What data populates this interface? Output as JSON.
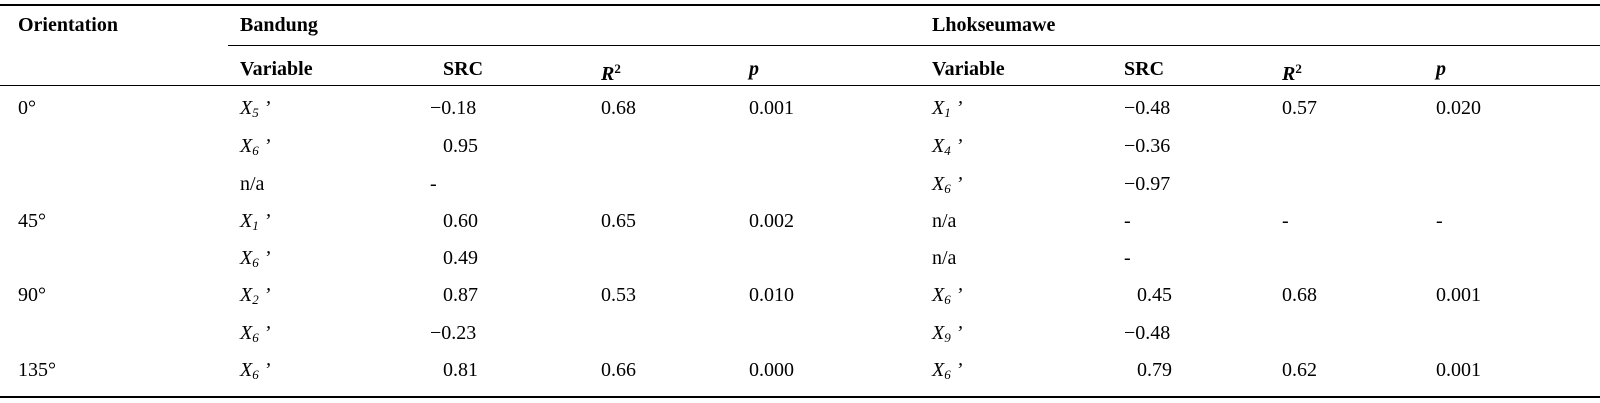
{
  "headers": {
    "orientation": "Orientation",
    "city1": "Bandung",
    "city2": "Lhokseumawe",
    "variable": "Variable",
    "src": "SRC",
    "r2_base": "R",
    "r2_sup": "2",
    "p": "p"
  },
  "rows": [
    {
      "orientation": "0°",
      "b_var": "X",
      "b_sub": "5",
      "b_src": "−0.18",
      "b_r2": "0.68",
      "b_p": "0.001",
      "l_var": "X",
      "l_sub": "1",
      "l_src": "−0.48",
      "l_r2": "0.57",
      "l_p": "0.020"
    },
    {
      "orientation": "",
      "b_var": "X",
      "b_sub": "6",
      "b_src": "0.95",
      "b_r2": "",
      "b_p": "",
      "l_var": "X",
      "l_sub": "4",
      "l_src": "−0.36",
      "l_r2": "",
      "l_p": ""
    },
    {
      "orientation": "",
      "b_text": "n/a",
      "b_src": "-",
      "b_r2": "",
      "b_p": "",
      "l_var": "X",
      "l_sub": "6",
      "l_src": "−0.97",
      "l_r2": "",
      "l_p": ""
    },
    {
      "orientation": "45°",
      "b_var": "X",
      "b_sub": "1",
      "b_src": "0.60",
      "b_r2": "0.65",
      "b_p": "0.002",
      "l_text": "n/a",
      "l_src": "-",
      "l_r2": "-",
      "l_p": "-"
    },
    {
      "orientation": "",
      "b_var": "X",
      "b_sub": "6",
      "b_src": "0.49",
      "b_r2": "",
      "b_p": "",
      "l_text": "n/a",
      "l_src": "-",
      "l_r2": "",
      "l_p": ""
    },
    {
      "orientation": "90°",
      "b_var": "X",
      "b_sub": "2",
      "b_src": "0.87",
      "b_r2": "0.53",
      "b_p": "0.010",
      "l_var": "X",
      "l_sub": "6",
      "l_src": "0.45",
      "l_r2": "0.68",
      "l_p": "0.001"
    },
    {
      "orientation": "",
      "b_var": "X",
      "b_sub": "6",
      "b_src": "−0.23",
      "b_r2": "",
      "b_p": "",
      "l_var": "X",
      "l_sub": "9",
      "l_src": "−0.48",
      "l_r2": "",
      "l_p": ""
    },
    {
      "orientation": "135°",
      "b_var": "X",
      "b_sub": "6",
      "b_src": "0.81",
      "b_r2": "0.66",
      "b_p": "0.000",
      "l_var": "X",
      "l_sub": "6",
      "l_src": "0.79",
      "l_r2": "0.62",
      "l_p": "0.001"
    }
  ],
  "prime": "’"
}
